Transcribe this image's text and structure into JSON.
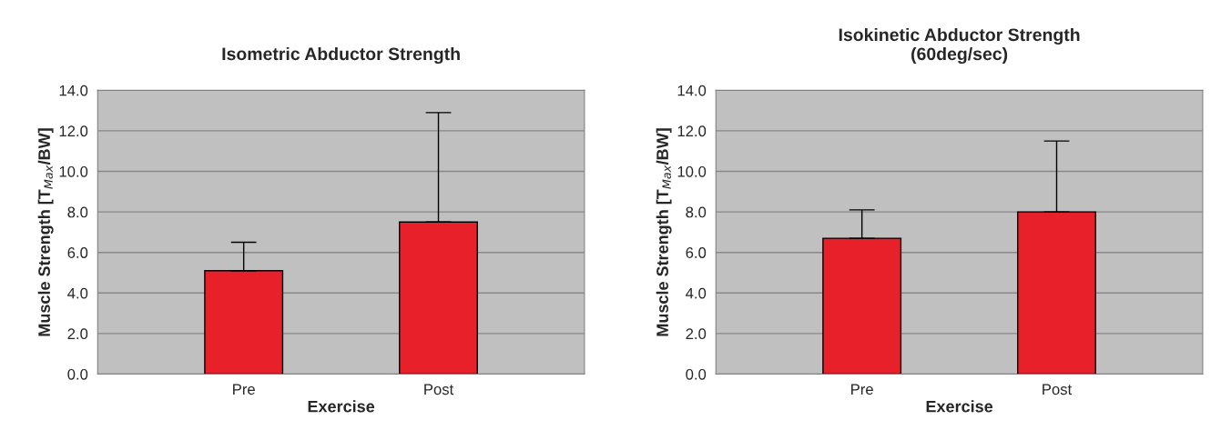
{
  "chart_data": [
    {
      "type": "bar",
      "title": "Isometric Abductor Strength",
      "xlabel": "Exercise",
      "ylabel": "Muscle Strength [T$_{Max}$/BW]",
      "categories": [
        "Pre",
        "Post"
      ],
      "values": [
        5.1,
        7.5
      ],
      "errors": [
        [
          5.1,
          6.5
        ],
        [
          7.5,
          12.9
        ]
      ],
      "color": "#e8202a",
      "ylim": [
        0,
        14
      ],
      "yticks": [
        {
          "value": 0,
          "label": "0.0"
        },
        {
          "value": 2,
          "label": "2.0"
        },
        {
          "value": 4,
          "label": "4.0"
        },
        {
          "value": 6,
          "label": "6.0"
        },
        {
          "value": 8,
          "label": "8.0"
        },
        {
          "value": 10,
          "label": "10.0"
        },
        {
          "value": 12,
          "label": "12.0"
        },
        {
          "value": 14,
          "label": "14.0"
        }
      ],
      "grid": "y",
      "legend": false
    },
    {
      "type": "bar",
      "title": "Isokinetic Abductor Strength\n(60deg/sec)",
      "xlabel": "Exercise",
      "ylabel": "Muscle Strength [T$_{Max}$/BW]",
      "categories": [
        "Pre",
        "Post"
      ],
      "values": [
        6.7,
        8.0
      ],
      "errors": [
        [
          6.7,
          8.1
        ],
        [
          8.0,
          11.5
        ]
      ],
      "color": "#e8202a",
      "ylim": [
        0,
        14
      ],
      "yticks": [
        {
          "value": 0,
          "label": "0.0"
        },
        {
          "value": 2,
          "label": "2.0"
        },
        {
          "value": 4,
          "label": "4.0"
        },
        {
          "value": 6,
          "label": "6.0"
        },
        {
          "value": 8,
          "label": "8.0"
        },
        {
          "value": 10,
          "label": "10.0"
        },
        {
          "value": 12,
          "label": "12.0"
        },
        {
          "value": 14,
          "label": "14.0"
        }
      ],
      "grid": "y",
      "legend": false
    }
  ]
}
